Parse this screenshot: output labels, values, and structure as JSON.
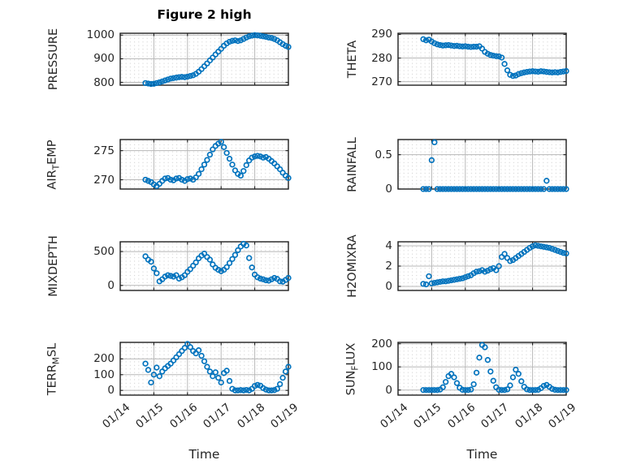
{
  "figure": {
    "title": "Figure 2 high",
    "xlabel": "Time",
    "colors": {
      "marker": "#0072BD",
      "axes": "#1f1f1f",
      "grid_major": "#b8b8b8",
      "grid_minor": "#d2d2d2",
      "text": "#262626",
      "background": "#ffffff"
    }
  },
  "chart_data": {
    "type": "scatter",
    "marker": "open-circle",
    "title": "Figure 2 high",
    "x_axis": {
      "label": "Time",
      "lim": [
        14,
        19
      ],
      "ticks": [
        14,
        15,
        16,
        17,
        18,
        19
      ],
      "tick_labels": [
        "01/14",
        "01/15",
        "01/16",
        "01/17",
        "01/18",
        "01/19"
      ]
    },
    "x_days": [
      14.75,
      14.833,
      14.917,
      15,
      15.083,
      15.167,
      15.25,
      15.333,
      15.417,
      15.5,
      15.583,
      15.667,
      15.75,
      15.833,
      15.917,
      16,
      16.083,
      16.167,
      16.25,
      16.333,
      16.417,
      16.5,
      16.583,
      16.667,
      16.75,
      16.833,
      16.917,
      17,
      17.083,
      17.167,
      17.25,
      17.333,
      17.417,
      17.5,
      17.583,
      17.667,
      17.75,
      17.833,
      17.917,
      18,
      18.083,
      18.167,
      18.25,
      18.333,
      18.417,
      18.5,
      18.583,
      18.667,
      18.75,
      18.833,
      18.917,
      19
    ],
    "subplots": [
      {
        "name": "PRESSURE",
        "row": 0,
        "col": 0,
        "ylabel": [
          {
            "text": "PRESSURE",
            "sub": false
          }
        ],
        "ylim": [
          788,
          1008
        ],
        "yticks": [
          800,
          900,
          1000
        ],
        "values": [
          797,
          795,
          793,
          794,
          797,
          800,
          804,
          808,
          812,
          816,
          818,
          820,
          822,
          823,
          822,
          824,
          827,
          830,
          836,
          845,
          856,
          868,
          880,
          893,
          905,
          918,
          930,
          942,
          955,
          965,
          972,
          976,
          978,
          975,
          978,
          984,
          990,
          995,
          998,
          1000,
          999,
          997,
          995,
          993,
          990,
          988,
          984,
          978,
          970,
          962,
          955,
          950
        ]
      },
      {
        "name": "THETA",
        "row": 0,
        "col": 1,
        "ylabel": [
          {
            "text": "THETA",
            "sub": false
          }
        ],
        "ylim": [
          268.5,
          290.5
        ],
        "yticks": [
          270,
          280,
          290
        ],
        "values": [
          288,
          287.5,
          287.8,
          287,
          286.3,
          285.8,
          285.5,
          285.3,
          285.4,
          285.5,
          285.3,
          285.1,
          285.2,
          285,
          284.9,
          285,
          284.8,
          284.7,
          284.8,
          284.8,
          285,
          284,
          282.6,
          281.8,
          281.3,
          281,
          280.8,
          280.7,
          280.2,
          277.5,
          274.8,
          272.9,
          272.4,
          272.6,
          273.2,
          273.6,
          273.9,
          274.1,
          274.3,
          274.4,
          274.3,
          274.2,
          274.4,
          274.3,
          274.1,
          274,
          273.9,
          274,
          273.9,
          274.1,
          274.3,
          274.5
        ]
      },
      {
        "name": "AIR_TEMP",
        "row": 1,
        "col": 0,
        "ylabel": [
          {
            "text": "AIR",
            "sub": false
          },
          {
            "text": "T",
            "sub": true
          },
          {
            "text": "EMP",
            "sub": false
          }
        ],
        "ylim": [
          268.4,
          276.9
        ],
        "yticks": [
          270,
          275
        ],
        "values": [
          270,
          269.8,
          269.6,
          269.2,
          268.9,
          269.3,
          269.8,
          270.2,
          270.3,
          270,
          269.9,
          270.2,
          270.3,
          270,
          269.8,
          270.1,
          270.2,
          270,
          270.4,
          271,
          271.8,
          272.6,
          273.4,
          274.3,
          275.2,
          275.8,
          276.2,
          276.5,
          275.6,
          274.6,
          273.6,
          272.6,
          271.6,
          271,
          270.7,
          271.5,
          272.5,
          273.3,
          273.8,
          274,
          274.1,
          274,
          273.8,
          273.9,
          273.6,
          273.2,
          272.8,
          272.3,
          271.8,
          271.2,
          270.7,
          270.3
        ]
      },
      {
        "name": "RAINFALL",
        "row": 1,
        "col": 1,
        "ylabel": [
          {
            "text": "RAINFALL",
            "sub": false
          }
        ],
        "ylim": [
          0,
          0.72
        ],
        "yticks": [
          0,
          0.5
        ],
        "values": [
          0,
          0,
          0,
          0.42,
          0.68,
          0,
          0,
          0,
          0,
          0,
          0,
          0,
          0,
          0,
          0,
          0,
          0,
          0,
          0,
          0,
          0,
          0,
          0,
          0,
          0,
          0,
          0,
          0,
          0,
          0,
          0,
          0,
          0,
          0,
          0,
          0,
          0,
          0,
          0,
          0,
          0,
          0,
          0,
          0,
          0.12,
          0,
          0,
          0,
          0,
          0,
          0,
          0
        ]
      },
      {
        "name": "MIXDEPTH",
        "row": 2,
        "col": 0,
        "ylabel": [
          {
            "text": "MIXDEPTH",
            "sub": false
          }
        ],
        "ylim": [
          -75,
          645
        ],
        "yticks": [
          0,
          500
        ],
        "values": [
          430,
          380,
          350,
          250,
          180,
          60,
          90,
          130,
          150,
          140,
          130,
          150,
          100,
          120,
          150,
          200,
          240,
          290,
          340,
          400,
          440,
          470,
          420,
          380,
          310,
          260,
          230,
          210,
          230,
          270,
          330,
          390,
          450,
          520,
          575,
          615,
          590,
          405,
          265,
          160,
          120,
          100,
          90,
          75,
          70,
          90,
          110,
          95,
          60,
          55,
          80,
          110
        ]
      },
      {
        "name": "H2OMIXRA",
        "row": 2,
        "col": 1,
        "ylabel": [
          {
            "text": "H2OMIXRA",
            "sub": false
          }
        ],
        "ylim": [
          -0.4,
          4.4
        ],
        "yticks": [
          0,
          2,
          4
        ],
        "values": [
          0.25,
          0.2,
          1,
          0.3,
          0.35,
          0.4,
          0.45,
          0.5,
          0.5,
          0.55,
          0.6,
          0.65,
          0.7,
          0.75,
          0.8,
          0.9,
          1,
          1.1,
          1.3,
          1.45,
          1.5,
          1.6,
          1.45,
          1.55,
          1.7,
          1.8,
          1.6,
          2,
          2.9,
          3.2,
          2.8,
          2.5,
          2.6,
          2.8,
          3,
          3.2,
          3.4,
          3.6,
          3.8,
          3.95,
          4.05,
          4,
          3.95,
          3.9,
          3.85,
          3.8,
          3.7,
          3.6,
          3.5,
          3.4,
          3.3,
          3.25
        ]
      },
      {
        "name": "TERR_MSL",
        "row": 3,
        "col": 0,
        "ylabel": [
          {
            "text": "TERR",
            "sub": false
          },
          {
            "text": "M",
            "sub": true
          },
          {
            "text": "SL",
            "sub": false
          }
        ],
        "ylim": [
          -30,
          305
        ],
        "yticks": [
          0,
          100,
          200
        ],
        "values": [
          170,
          130,
          50,
          100,
          145,
          90,
          120,
          140,
          155,
          170,
          190,
          210,
          230,
          250,
          270,
          295,
          275,
          250,
          235,
          255,
          220,
          185,
          150,
          120,
          90,
          115,
          80,
          50,
          110,
          125,
          60,
          10,
          0,
          0,
          2,
          0,
          3,
          0,
          10,
          28,
          35,
          30,
          15,
          5,
          0,
          0,
          2,
          10,
          40,
          80,
          120,
          150
        ]
      },
      {
        "name": "SUN_FLUX",
        "row": 3,
        "col": 1,
        "ylabel": [
          {
            "text": "SUN",
            "sub": false
          },
          {
            "text": "F",
            "sub": true
          },
          {
            "text": "LUX",
            "sub": false
          }
        ],
        "ylim": [
          -22,
          206
        ],
        "yticks": [
          0,
          100,
          200
        ],
        "values": [
          0,
          0,
          0,
          0,
          0,
          0,
          2,
          12,
          35,
          60,
          70,
          55,
          30,
          10,
          1,
          0,
          0,
          2,
          25,
          75,
          140,
          195,
          185,
          130,
          80,
          40,
          12,
          1,
          0,
          0,
          3,
          20,
          55,
          88,
          70,
          38,
          14,
          3,
          0,
          0,
          0,
          1,
          8,
          18,
          22,
          14,
          5,
          1,
          0,
          0,
          0,
          0
        ]
      }
    ]
  }
}
